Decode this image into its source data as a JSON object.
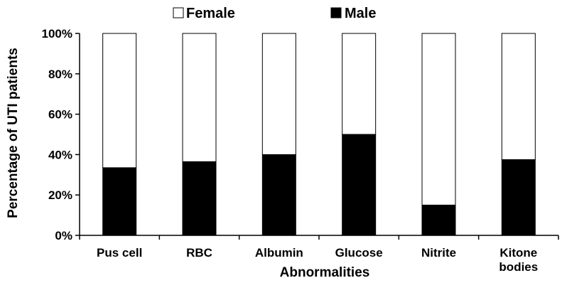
{
  "chart_data": {
    "type": "bar",
    "stacked": true,
    "normalized": true,
    "categories": [
      "Pus cell",
      "RBC",
      "Albumin",
      "Glucose",
      "Nitrite",
      "Kitone bodies"
    ],
    "category_lines": [
      [
        "Pus cell"
      ],
      [
        "RBC"
      ],
      [
        "Albumin"
      ],
      [
        "Glucose"
      ],
      [
        "Nitrite"
      ],
      [
        "Kitone",
        "bodies"
      ]
    ],
    "series": [
      {
        "name": "Male",
        "values": [
          33.5,
          36.5,
          40,
          50,
          15,
          37.5
        ],
        "color": "#000000"
      },
      {
        "name": "Female",
        "values": [
          66.5,
          63.5,
          60,
          50,
          85,
          62.5
        ],
        "color": "#ffffff"
      }
    ],
    "title": "",
    "xlabel": "Abnormalities",
    "ylabel": "Percentage of UTI patients",
    "ylim": [
      0,
      100
    ],
    "yticks": [
      0,
      20,
      40,
      60,
      80,
      100
    ],
    "ytick_labels": [
      "0%",
      "20%",
      "40%",
      "60%",
      "80%",
      "100%"
    ],
    "grid": false,
    "legend_position": "top",
    "legend_entries": [
      "Female",
      "Male"
    ]
  }
}
